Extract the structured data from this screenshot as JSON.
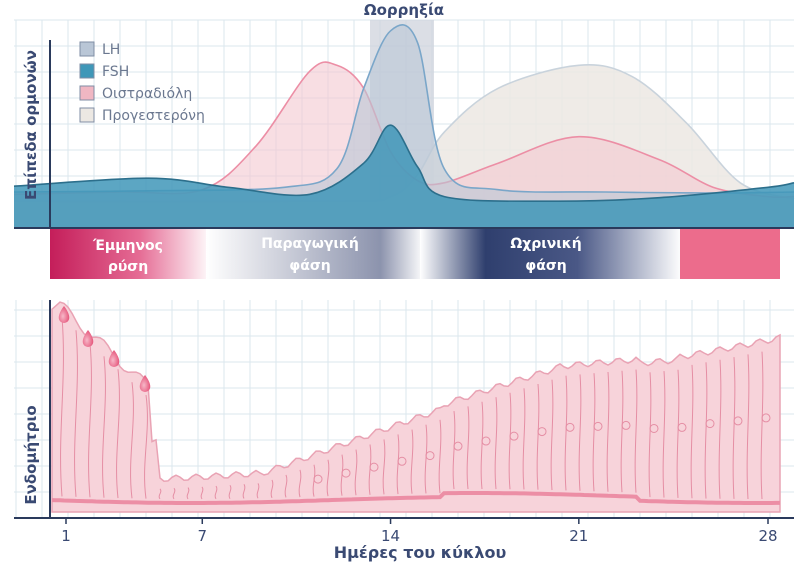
{
  "ovulation_label": "Ωορρηξία",
  "hormones_ylabel": "Επίπεδα ορμονών",
  "endometrium_ylabel": "Ενδομήτριο",
  "xlabel": "Ημέρες του κύκλου",
  "legend": [
    {
      "label": "LH",
      "color": "#b9c6d6"
    },
    {
      "label": "FSH",
      "color": "#3f97b8"
    },
    {
      "label": "Οιστραδιόλη",
      "color": "#f0b7c3"
    },
    {
      "label": "Προγεστερόνη",
      "color": "#ece8e3"
    }
  ],
  "phases": [
    {
      "line1": "Έμμηνος",
      "line2": "ρύση"
    },
    {
      "line1": "Παραγωγική",
      "line2": "φάση"
    },
    {
      "line1": "Ωχρινική",
      "line2": "φάση"
    }
  ],
  "colors": {
    "grid": "#dbe7ee",
    "axis": "#2a3a5c",
    "ovulation_band": "#cfd3dc",
    "lh_line": "#7aa6c9",
    "fsh": "#3f97b8",
    "estradiol_line": "#ec8ea5",
    "progesterone_line": "#c9d3dc",
    "menses": "#c41e5a",
    "luteal": "#2f3f6e",
    "late_pink": "#ec6c8c",
    "tissue": "#f7d3da",
    "tissue_line": "#e58ea4",
    "xlabel": "#3a4a73"
  },
  "chart_data": {
    "type": "line",
    "x_ticks": [
      1,
      7,
      14,
      21,
      28
    ],
    "x_range": [
      0,
      29
    ],
    "series": [
      {
        "name": "LH",
        "x": [
          0,
          5,
          10,
          12,
          13,
          14,
          15,
          16,
          18,
          22,
          26,
          29
        ],
        "y": [
          20,
          21,
          24,
          40,
          110,
          160,
          150,
          40,
          22,
          20,
          19,
          20
        ]
      },
      {
        "name": "FSH",
        "x": [
          0,
          5,
          8,
          11,
          13,
          14,
          15,
          16,
          20,
          24,
          28,
          29
        ],
        "y": [
          25,
          32,
          24,
          18,
          45,
          78,
          42,
          16,
          12,
          15,
          24,
          28
        ]
      },
      {
        "name": "Οιστραδιόλη",
        "x": [
          0,
          4,
          7,
          9,
          11,
          12,
          13,
          14,
          15,
          16,
          18,
          21,
          24,
          26,
          28,
          29
        ],
        "y": [
          18,
          20,
          22,
          60,
          125,
          130,
          110,
          55,
          30,
          28,
          45,
          68,
          48,
          24,
          16,
          16
        ]
      },
      {
        "name": "Προγεστερόνη",
        "x": [
          0,
          12,
          14,
          15,
          16,
          18,
          21,
          23,
          25,
          27,
          29
        ],
        "y": [
          12,
          12,
          16,
          35,
          72,
          110,
          130,
          120,
          80,
          28,
          14
        ]
      }
    ]
  }
}
